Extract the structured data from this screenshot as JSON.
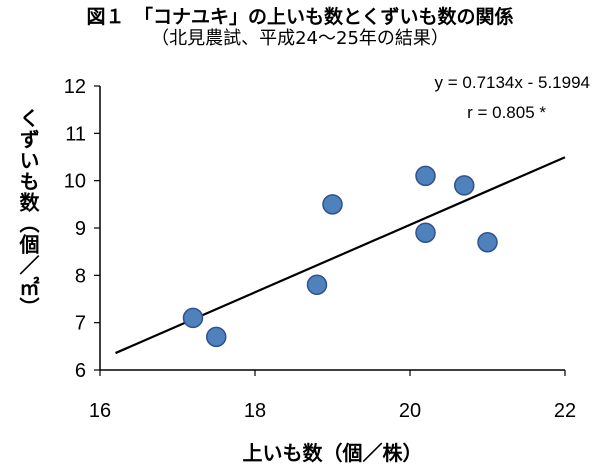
{
  "chart_data": {
    "type": "scatter",
    "title": "図１　「コナユキ」の上いも数とくずいも数の関係",
    "subtitle": "（北見農試、平成24～25年の結果）",
    "xlabel": "上いも数（個／株）",
    "ylabel": "くずいも数（個／㎡）",
    "xlim": [
      16,
      22
    ],
    "ylim": [
      6,
      12
    ],
    "xticks": [
      "16",
      "18",
      "20",
      "22"
    ],
    "yticks": [
      "6",
      "7",
      "8",
      "9",
      "10",
      "11",
      "12"
    ],
    "points": [
      {
        "x": 17.2,
        "y": 7.1
      },
      {
        "x": 17.5,
        "y": 6.7
      },
      {
        "x": 18.8,
        "y": 7.8
      },
      {
        "x": 19.0,
        "y": 9.5
      },
      {
        "x": 20.2,
        "y": 10.1
      },
      {
        "x": 20.2,
        "y": 8.9
      },
      {
        "x": 20.7,
        "y": 9.9
      },
      {
        "x": 21.0,
        "y": 8.7
      }
    ],
    "trendline": {
      "slope": 0.7134,
      "intercept": -5.1994,
      "x_range": [
        16.2,
        22
      ]
    },
    "equation_label": "y = 0.7134x - 5.1994",
    "r_label": "r = 0.805 *",
    "marker_color": "#4F81BD",
    "marker_edge_color": "#2F528F",
    "line_color": "#000000",
    "grid": false
  }
}
